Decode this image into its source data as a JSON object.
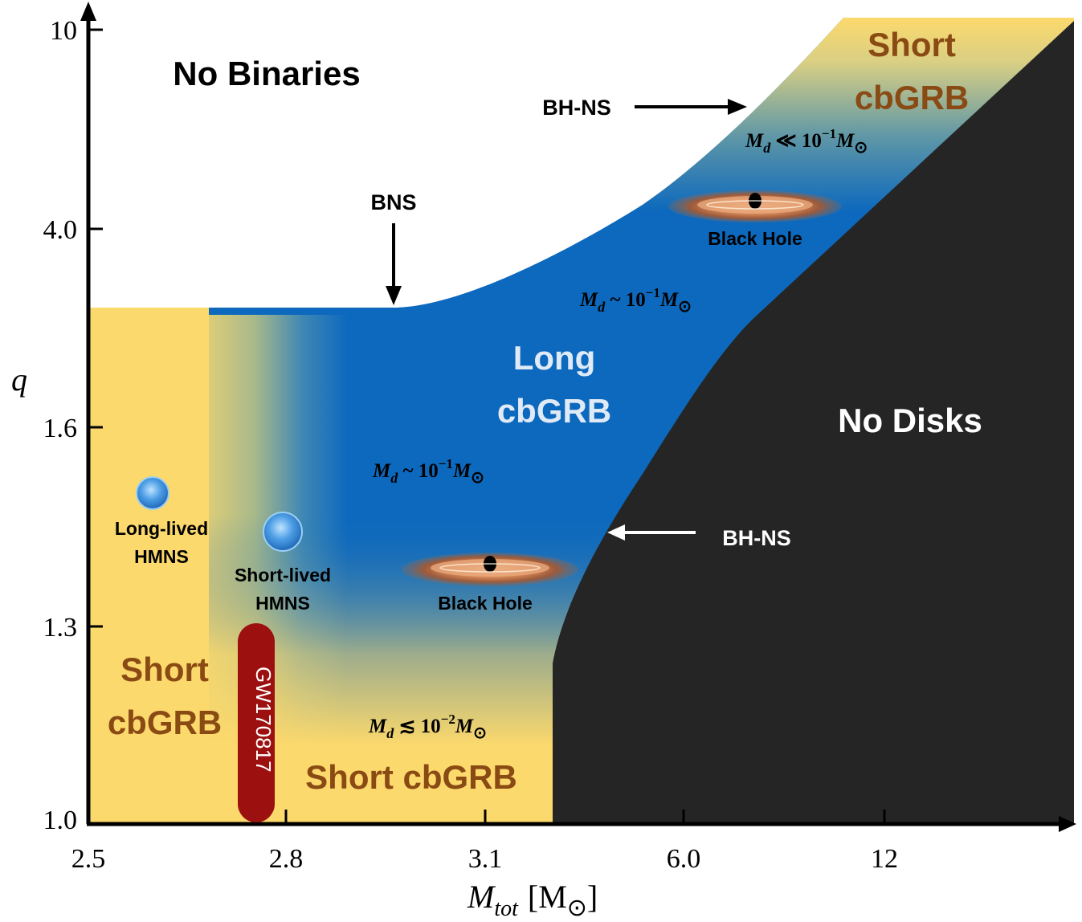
{
  "axes": {
    "x_ticks": [
      "2.5",
      "2.8",
      "3.1",
      "6.0",
      "12"
    ],
    "y_ticks": [
      "10",
      "4.0",
      "1.6",
      "1.3",
      "1.0"
    ],
    "x_title": "M",
    "x_title_sub": "tot",
    "x_title_unit_open": "[M",
    "x_title_unit_sym": "⊙",
    "x_title_unit_close": "]",
    "y_title": "q"
  },
  "regions": {
    "no_binaries": "No Binaries",
    "no_disks": "No Disks",
    "long_cbgrb": [
      "Long",
      "cbGRB"
    ],
    "short_cbgrb_topright": [
      "Short",
      "cbGRB"
    ],
    "short_cbgrb_left": [
      "Short",
      "cbGRB"
    ],
    "short_cbgrb_bottom": "Short cbGRB"
  },
  "annotations": {
    "bh_ns_top": "BH-NS",
    "bh_ns_bottom": "BH-NS",
    "bns": "BNS",
    "black_hole_upper": "Black Hole",
    "black_hole_lower": "Black Hole",
    "long_lived_hmns": [
      "Long-lived",
      "HMNS"
    ],
    "short_lived_hmns": [
      "Short-lived",
      "HMNS"
    ],
    "gw_event": "GW170817"
  },
  "disk_mass": {
    "top": {
      "prefix": "M",
      "sub": "d",
      "rel": " ≪ 10",
      "exp": "−1",
      "tail": "M",
      "sym": "⊙"
    },
    "upper": {
      "prefix": "M",
      "sub": "d",
      "rel": " ~ 10",
      "exp": "−1",
      "tail": "M",
      "sym": "⊙"
    },
    "middle": {
      "prefix": "M",
      "sub": "d",
      "rel": " ~ 10",
      "exp": "−1",
      "tail": "M",
      "sym": "⊙"
    },
    "bottom": {
      "prefix": "M",
      "sub": "d",
      "rel": " ≲ 10",
      "exp": "−2",
      "tail": "M",
      "sym": "⊙"
    }
  },
  "colors": {
    "short_yellow": "#fcd96c",
    "long_blue": "#0d69bd",
    "no_disk_black": "#252525",
    "gw_bar": "#9c1010",
    "short_text": "#8a4a14",
    "long_text": "#dfeaf6"
  }
}
